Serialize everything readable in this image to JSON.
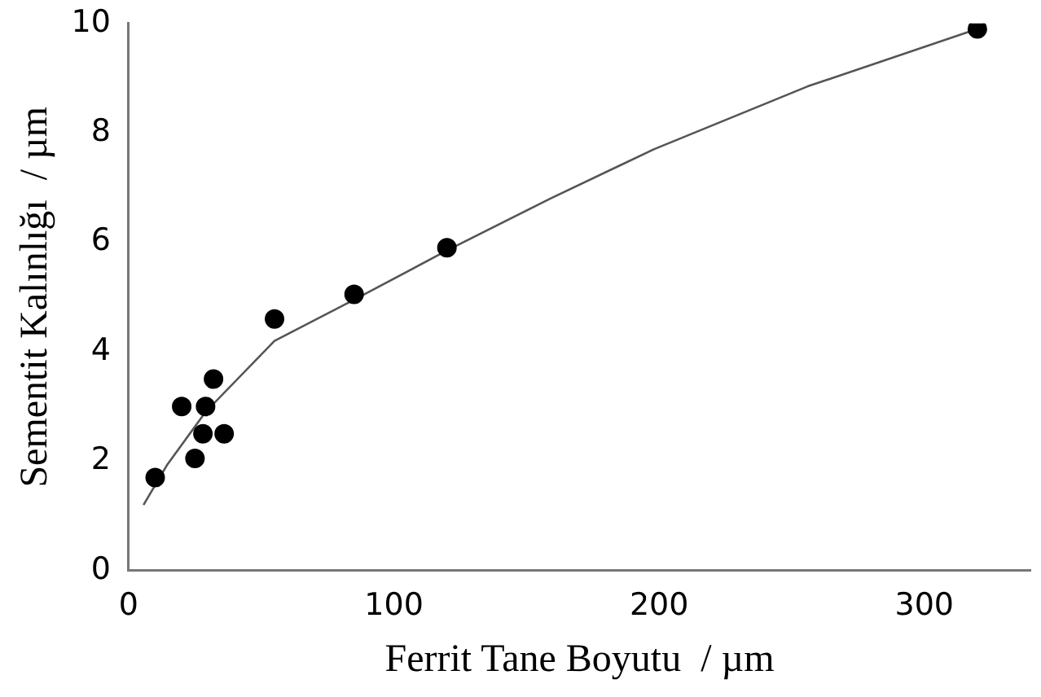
{
  "chart_data": {
    "type": "scatter",
    "xlabel": "Ferrit Tane Boyutu  / µm",
    "ylabel": "Sementit Kalınlığı  / µm",
    "xlim": [
      0,
      340
    ],
    "ylim": [
      0,
      10
    ],
    "xticks": [
      0,
      100,
      200,
      300
    ],
    "yticks": [
      0,
      2,
      4,
      6,
      8,
      10
    ],
    "grid": false,
    "legend": false,
    "marker": "circle",
    "series": [
      {
        "color": "#000000",
        "x": [
          10,
          20,
          25,
          29,
          28,
          36,
          32,
          55,
          85,
          120,
          320
        ],
        "values": [
          1.7,
          3.0,
          2.05,
          3.0,
          2.5,
          2.5,
          3.5,
          4.6,
          5.05,
          5.9,
          9.9
        ]
      },
      {
        "type": "line",
        "color": "#555555",
        "marker": "none",
        "line_style": "solid",
        "x": [
          5.6,
          14.6,
          29,
          55,
          85,
          120,
          159,
          198,
          256,
          320
        ],
        "values": [
          1.2,
          1.94,
          2.9,
          4.2,
          4.95,
          5.85,
          6.8,
          7.7,
          8.85,
          9.9
        ]
      }
    ]
  }
}
